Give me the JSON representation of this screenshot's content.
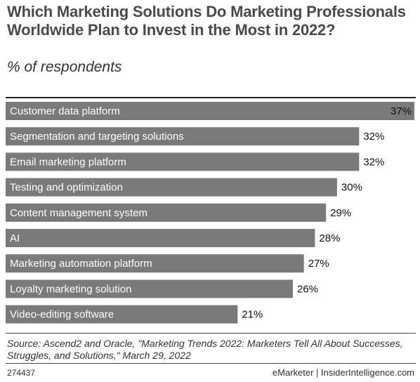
{
  "header": {
    "title": "Which Marketing Solutions Do Marketing Professionals Worldwide Plan to Invest in the Most in 2022?",
    "subtitle": "% of respondents"
  },
  "chart_data": {
    "type": "bar",
    "orientation": "horizontal",
    "categories": [
      "Customer data platform",
      "Segmentation and targeting solutions",
      "Email marketing platform",
      "Testing and optimization",
      "Content management system",
      "AI",
      "Marketing automation platform",
      "Loyalty marketing solution",
      "Video-editing software"
    ],
    "values": [
      37,
      32,
      32,
      30,
      29,
      28,
      27,
      26,
      21
    ],
    "value_labels": [
      "37%",
      "32%",
      "32%",
      "30%",
      "29%",
      "28%",
      "27%",
      "26%",
      "21%"
    ],
    "title": "Which Marketing Solutions Do Marketing Professionals Worldwide Plan to Invest in the Most in 2022?",
    "subtitle": "% of respondents",
    "xlim": [
      0,
      37
    ],
    "grid": false,
    "legend": "none",
    "bar_color": "#7a7a7a"
  },
  "footer": {
    "source": "Source: Ascend2 and Oracle, \"Marketing Trends 2022: Marketers Tell All About Successes, Struggles, and Solutions,\" March 29, 2022",
    "chart_id": "274437",
    "brand": "eMarketer | InsiderIntelligence.com"
  }
}
